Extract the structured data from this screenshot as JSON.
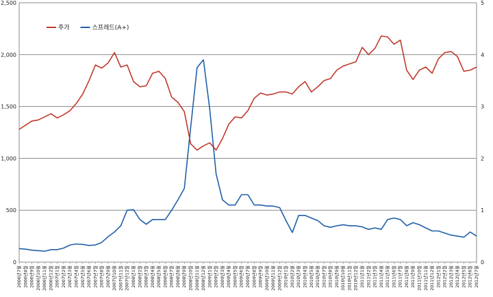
{
  "chart_data": {
    "type": "line",
    "title": "",
    "xlabel": "",
    "ylabel": "",
    "y2label": "",
    "ylim": [
      0,
      2500
    ],
    "y2lim": [
      0,
      5
    ],
    "yticks": [
      "0",
      "500",
      "1,000",
      "1,500",
      "2,000",
      "2,500"
    ],
    "y2ticks": [
      "0",
      "1",
      "2",
      "3",
      "4",
      "5"
    ],
    "grid": true,
    "legend": "top-left",
    "x_tick_labels": [
      "2006년7월",
      "2006년8월",
      "2006년9월",
      "2006년10월",
      "2006년11월",
      "2006년12월",
      "2007년1월",
      "2007년2월",
      "2007년3월",
      "2007년4월",
      "2007년5월",
      "2007년6월",
      "2007년7월",
      "2007년8월",
      "2007년9월",
      "2007년10월",
      "2007년11월",
      "2007년12월",
      "2008년1월",
      "2008년2월",
      "2008년3월",
      "2008년4월",
      "2008년5월",
      "2008년6월",
      "2008년7월",
      "2008년8월",
      "2008년9월",
      "2008년10월",
      "2008년11월",
      "2008년12월",
      "2009년1월",
      "2009년2월",
      "2009년3월",
      "2009년4월",
      "2009년5월",
      "2009년6월",
      "2009년7월",
      "2009년8월",
      "2009년9월",
      "2009년10월",
      "2009년11월",
      "2009년12월",
      "2010년1월",
      "2010년2월",
      "2010년3월",
      "2010년4월",
      "2010년5월",
      "2010년6월",
      "2010년7월",
      "2010년8월",
      "2010년9월",
      "2010년10월",
      "2010년11월",
      "2010년12월",
      "2011년1월",
      "2011년2월",
      "2011년3월",
      "2011년4월",
      "2011년5월",
      "2011년6월",
      "2011년7월",
      "2011년8월",
      "2011년9월",
      "2011년10월",
      "2011년11월",
      "2011년12월",
      "2012년1월",
      "2012년2월",
      "2012년3월",
      "2012년4월",
      "2012년5월",
      "2012년6월",
      "2012년7월"
    ],
    "series": [
      {
        "name": "주가",
        "axis": "left",
        "color": "#c0392b",
        "values": [
          1280,
          1320,
          1360,
          1370,
          1400,
          1430,
          1390,
          1420,
          1460,
          1530,
          1620,
          1750,
          1900,
          1870,
          1920,
          2020,
          1880,
          1900,
          1740,
          1690,
          1700,
          1820,
          1840,
          1770,
          1590,
          1540,
          1450,
          1140,
          1080,
          1120,
          1150,
          1080,
          1190,
          1330,
          1400,
          1390,
          1460,
          1580,
          1630,
          1610,
          1620,
          1640,
          1640,
          1620,
          1690,
          1740,
          1640,
          1690,
          1750,
          1770,
          1850,
          1890,
          1910,
          1930,
          2070,
          2000,
          2060,
          2180,
          2170,
          2100,
          2140,
          1850,
          1760,
          1850,
          1880,
          1820,
          1960,
          2020,
          2030,
          1980,
          1840,
          1850,
          1880
        ]
      },
      {
        "name": "스프레드(A+)",
        "axis": "right",
        "color": "#1f5fa8",
        "values": [
          0.26,
          0.25,
          0.23,
          0.22,
          0.21,
          0.24,
          0.24,
          0.27,
          0.33,
          0.35,
          0.34,
          0.32,
          0.33,
          0.38,
          0.49,
          0.58,
          0.7,
          1.0,
          1.01,
          0.82,
          0.73,
          0.82,
          0.82,
          0.82,
          1.0,
          1.2,
          1.42,
          2.6,
          3.75,
          3.9,
          2.95,
          1.7,
          1.2,
          1.1,
          1.1,
          1.3,
          1.3,
          1.1,
          1.1,
          1.08,
          1.08,
          1.05,
          0.8,
          0.57,
          0.9,
          0.9,
          0.85,
          0.8,
          0.7,
          0.67,
          0.7,
          0.72,
          0.7,
          0.7,
          0.68,
          0.63,
          0.66,
          0.63,
          0.82,
          0.85,
          0.82,
          0.7,
          0.76,
          0.72,
          0.66,
          0.6,
          0.6,
          0.56,
          0.52,
          0.5,
          0.48,
          0.58,
          0.5
        ]
      }
    ]
  }
}
